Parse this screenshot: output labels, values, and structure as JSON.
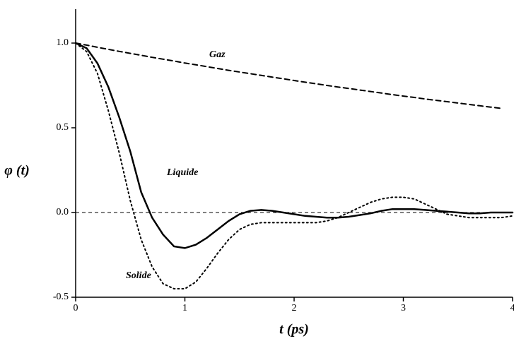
{
  "chart_data": {
    "type": "line",
    "xlabel": "t (ps)",
    "ylabel": "φ (t)",
    "x": [
      0,
      0.1,
      0.2,
      0.3,
      0.4,
      0.5,
      0.6,
      0.7,
      0.8,
      0.9,
      1.0,
      1.1,
      1.2,
      1.3,
      1.4,
      1.5,
      1.6,
      1.7,
      1.8,
      1.9,
      2.0,
      2.1,
      2.2,
      2.3,
      2.4,
      2.5,
      2.6,
      2.7,
      2.8,
      2.9,
      3.0,
      3.1,
      3.2,
      3.3,
      3.4,
      3.5,
      3.6,
      3.7,
      3.8,
      3.9,
      4.0
    ],
    "series": [
      {
        "name": "Gaz",
        "color": "#000000",
        "dash": "dashed",
        "values": [
          1.0,
          0.988,
          0.975,
          0.963,
          0.951,
          0.939,
          0.928,
          0.916,
          0.905,
          0.894,
          0.882,
          0.872,
          0.861,
          0.85,
          0.839,
          0.829,
          0.819,
          0.809,
          0.799,
          0.789,
          0.779,
          0.769,
          0.76,
          0.75,
          0.741,
          0.732,
          0.723,
          0.714,
          0.705,
          0.696,
          0.687,
          0.679,
          0.67,
          0.662,
          0.654,
          0.646,
          0.638,
          0.63,
          0.622,
          0.614,
          null
        ]
      },
      {
        "name": "Liquide",
        "color": "#000000",
        "dash": "solid",
        "values": [
          1.0,
          0.97,
          0.88,
          0.74,
          0.56,
          0.36,
          0.12,
          -0.03,
          -0.13,
          -0.2,
          -0.21,
          -0.19,
          -0.15,
          -0.1,
          -0.05,
          -0.01,
          0.01,
          0.015,
          0.01,
          0,
          -0.01,
          -0.02,
          -0.025,
          -0.03,
          -0.03,
          -0.025,
          -0.015,
          -0.005,
          0.01,
          0.02,
          0.02,
          0.02,
          0.015,
          0.01,
          0.005,
          0,
          -0.005,
          -0.005,
          0,
          0,
          0
        ]
      },
      {
        "name": "Solide",
        "color": "#000000",
        "dash": "dotted",
        "values": [
          1.0,
          0.95,
          0.82,
          0.6,
          0.35,
          0.07,
          -0.16,
          -0.32,
          -0.42,
          -0.45,
          -0.45,
          -0.41,
          -0.33,
          -0.24,
          -0.16,
          -0.1,
          -0.07,
          -0.06,
          -0.06,
          -0.06,
          -0.06,
          -0.06,
          -0.06,
          -0.05,
          -0.03,
          0,
          0.03,
          0.06,
          0.08,
          0.09,
          0.09,
          0.08,
          0.05,
          0.02,
          -0.01,
          -0.02,
          -0.03,
          -0.03,
          -0.03,
          -0.03,
          -0.02
        ]
      }
    ],
    "hlines": [
      0
    ],
    "xlim": [
      0,
      4
    ],
    "xticks": [
      0,
      1,
      2,
      3,
      4
    ],
    "ylim": [
      -0.5,
      1.2
    ],
    "yticks": [
      -0.5,
      {
        "value": 0,
        "label": "0.0"
      },
      0.5,
      {
        "value": 1,
        "label": "1.0"
      }
    ]
  }
}
